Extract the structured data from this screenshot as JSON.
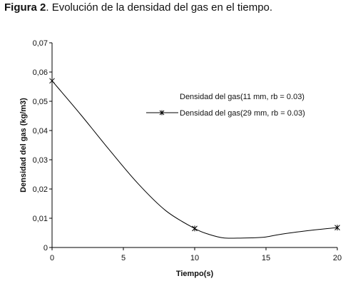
{
  "caption": {
    "label": "Figura 2",
    "text": ". Evolución de la densidad del gas en el tiempo."
  },
  "chart_data": {
    "type": "line",
    "xlabel": "Tiempo(s)",
    "ylabel": "Densidad del gas (kg/m3)",
    "xlim": [
      0,
      20
    ],
    "ylim": [
      0,
      0.07
    ],
    "xticks": [
      0,
      5,
      10,
      15,
      20
    ],
    "xtick_labels": [
      "0",
      "5",
      "10",
      "15",
      "20"
    ],
    "yticks": [
      0,
      0.01,
      0.02,
      0.03,
      0.04,
      0.05,
      0.06,
      0.07
    ],
    "ytick_labels": [
      "0",
      "0,01",
      "0,02",
      "0,03",
      "0,04",
      "0,05",
      "0,06",
      "0,07"
    ],
    "grid": false,
    "legend_position": "right",
    "series": [
      {
        "name": "Densidad del gas(11 mm, rb = 0.03)",
        "x": [],
        "values": [],
        "marker": "none",
        "color": "#000000"
      },
      {
        "name": "Densidad del gas(29 mm, rb = 0.03)",
        "x": [
          0,
          2,
          4,
          6,
          8,
          10,
          11,
          12,
          13,
          14,
          15,
          16,
          18,
          20
        ],
        "values": [
          0.057,
          0.0455,
          0.0335,
          0.022,
          0.0125,
          0.0065,
          0.0045,
          0.0033,
          0.0032,
          0.0033,
          0.0036,
          0.0045,
          0.0058,
          0.0068
        ],
        "markers_x": [
          0,
          10,
          20
        ],
        "markers_y": [
          0.057,
          0.0065,
          0.0068
        ],
        "marker": "asterisk",
        "color": "#000000"
      }
    ]
  }
}
